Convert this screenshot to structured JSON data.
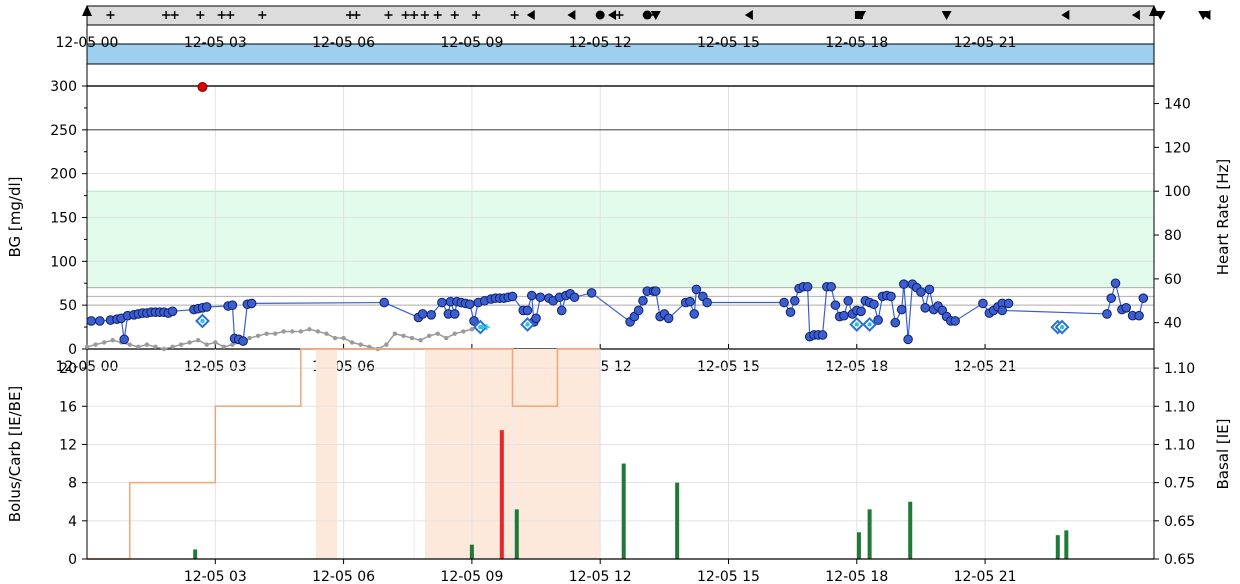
{
  "chart_data": [
    {
      "type": "scatter",
      "panel": "event-strip",
      "markers": [
        {
          "t": 0.55,
          "s": "plus"
        },
        {
          "t": 1.85,
          "s": "plus"
        },
        {
          "t": 2.05,
          "s": "plus"
        },
        {
          "t": 2.65,
          "s": "plus"
        },
        {
          "t": 3.15,
          "s": "plus"
        },
        {
          "t": 3.35,
          "s": "plus"
        },
        {
          "t": 4.1,
          "s": "plus"
        },
        {
          "t": 6.15,
          "s": "plus"
        },
        {
          "t": 6.3,
          "s": "plus"
        },
        {
          "t": 7.05,
          "s": "plus"
        },
        {
          "t": 7.45,
          "s": "plus"
        },
        {
          "t": 7.65,
          "s": "plus"
        },
        {
          "t": 7.9,
          "s": "plus"
        },
        {
          "t": 8.2,
          "s": "plus"
        },
        {
          "t": 8.6,
          "s": "plus"
        },
        {
          "t": 9.1,
          "s": "plus"
        },
        {
          "t": 10.0,
          "s": "plus"
        },
        {
          "t": 12.45,
          "s": "plus"
        },
        {
          "t": 13.15,
          "s": "plus"
        },
        {
          "t": 10.4,
          "s": "tri-left"
        },
        {
          "t": 11.35,
          "s": "tri-left"
        },
        {
          "t": 12.3,
          "s": "tri-left"
        },
        {
          "t": 15.5,
          "s": "tri-left"
        },
        {
          "t": 22.9,
          "s": "tri-left"
        },
        {
          "t": 24.55,
          "s": "tri-left"
        },
        {
          "t": 26.2,
          "s": "tri-left"
        },
        {
          "t": 27.2,
          "s": "tri-left"
        },
        {
          "t": 12.0,
          "s": "dot"
        },
        {
          "t": 13.1,
          "s": "dot"
        },
        {
          "t": 13.3,
          "s": "tri-down"
        },
        {
          "t": 18.1,
          "s": "tri-down"
        },
        {
          "t": 20.1,
          "s": "tri-down"
        },
        {
          "t": 25.1,
          "s": "tri-down"
        },
        {
          "t": 26.1,
          "s": "tri-down"
        },
        {
          "t": 29.05,
          "s": "tri-down"
        },
        {
          "t": 29.15,
          "s": "tri-down"
        },
        {
          "t": 29.3,
          "s": "tri-down"
        },
        {
          "t": 29.55,
          "s": "tri-down"
        },
        {
          "t": 18.05,
          "s": "square"
        },
        {
          "t": 29.0,
          "s": "square"
        }
      ]
    },
    {
      "type": "area",
      "panel": "bg-heart-rate",
      "xlabel": "",
      "ylabel": "BG [mg/dl]",
      "ylabel_right": "Heart Rate [Hz]",
      "xlim": [
        0,
        24.95
      ],
      "ylim": [
        0,
        300
      ],
      "ylim_right": [
        28,
        148
      ],
      "xticks": [
        0,
        3,
        6,
        9,
        12,
        15,
        18,
        21
      ],
      "xtick_labels": [
        "12-05 00",
        "12-05 03",
        "12-05 06",
        "12-05 09",
        "12-05 12",
        "12-05 15",
        "12-05 18",
        "12-05 21"
      ],
      "yticks": [
        0,
        50,
        100,
        150,
        200,
        250,
        300
      ],
      "yticks_right": [
        40,
        60,
        80,
        100,
        120,
        140
      ],
      "target_band": [
        70,
        180
      ],
      "reference_lines": [
        50,
        60,
        70,
        250,
        300
      ],
      "bg_low": [
        [
          0.1,
          32
        ],
        [
          0.3,
          32
        ],
        [
          0.55,
          33
        ],
        [
          0.7,
          34
        ],
        [
          0.8,
          35
        ],
        [
          0.87,
          11
        ],
        [
          0.95,
          38
        ],
        [
          1.1,
          39
        ],
        [
          1.2,
          40
        ],
        [
          1.3,
          41
        ],
        [
          1.4,
          41
        ],
        [
          1.5,
          42
        ],
        [
          1.6,
          42
        ],
        [
          1.7,
          42
        ],
        [
          1.8,
          42
        ],
        [
          1.9,
          41
        ],
        [
          2.0,
          43
        ],
        [
          2.5,
          45
        ],
        [
          2.6,
          46
        ],
        [
          2.7,
          47
        ],
        [
          2.8,
          48
        ],
        [
          3.3,
          49
        ],
        [
          3.4,
          50
        ],
        [
          3.45,
          12
        ],
        [
          3.55,
          11
        ],
        [
          3.65,
          9
        ],
        [
          3.75,
          51
        ],
        [
          3.85,
          52
        ],
        [
          6.95,
          53
        ],
        [
          7.75,
          36
        ],
        [
          7.85,
          40
        ],
        [
          8.05,
          39
        ],
        [
          8.3,
          53
        ],
        [
          8.45,
          40
        ],
        [
          8.5,
          54
        ],
        [
          8.6,
          40
        ],
        [
          8.65,
          54
        ],
        [
          8.75,
          53
        ],
        [
          8.85,
          52
        ],
        [
          8.95,
          51
        ],
        [
          9.05,
          32
        ],
        [
          9.15,
          53
        ],
        [
          9.3,
          55
        ],
        [
          9.45,
          57
        ],
        [
          9.55,
          58
        ],
        [
          9.65,
          58
        ],
        [
          9.75,
          58
        ],
        [
          9.85,
          59
        ],
        [
          9.95,
          60
        ],
        [
          10.2,
          44
        ],
        [
          10.3,
          44
        ],
        [
          10.4,
          61
        ],
        [
          10.45,
          31
        ],
        [
          10.5,
          35
        ],
        [
          10.6,
          59
        ],
        [
          10.8,
          58
        ],
        [
          10.9,
          55
        ],
        [
          11.05,
          59
        ],
        [
          11.1,
          44
        ],
        [
          11.2,
          61
        ],
        [
          11.3,
          63
        ],
        [
          11.4,
          59
        ],
        [
          11.8,
          64
        ],
        [
          12.7,
          31
        ],
        [
          12.8,
          37
        ],
        [
          12.9,
          44
        ],
        [
          13.0,
          55
        ],
        [
          13.1,
          66
        ],
        [
          13.25,
          66
        ],
        [
          13.3,
          66
        ],
        [
          13.4,
          37
        ],
        [
          13.5,
          40
        ],
        [
          13.6,
          35
        ],
        [
          14.0,
          53
        ],
        [
          14.1,
          54
        ],
        [
          14.2,
          40
        ],
        [
          14.25,
          68
        ],
        [
          14.4,
          60
        ],
        [
          14.5,
          53
        ],
        [
          16.3,
          53
        ],
        [
          16.45,
          42
        ],
        [
          16.55,
          55
        ],
        [
          16.65,
          69
        ],
        [
          16.75,
          71
        ],
        [
          16.85,
          71
        ],
        [
          16.9,
          14
        ],
        [
          17.0,
          16
        ],
        [
          17.1,
          16
        ],
        [
          17.2,
          16
        ],
        [
          17.3,
          71
        ],
        [
          17.4,
          71
        ],
        [
          17.5,
          50
        ],
        [
          17.6,
          37
        ],
        [
          17.7,
          38
        ],
        [
          17.8,
          55
        ],
        [
          17.9,
          40
        ],
        [
          18.0,
          44
        ],
        [
          18.1,
          43
        ],
        [
          18.2,
          55
        ],
        [
          18.3,
          53
        ],
        [
          18.4,
          51
        ],
        [
          18.5,
          33
        ],
        [
          18.6,
          60
        ],
        [
          18.7,
          61
        ],
        [
          18.8,
          60
        ],
        [
          18.9,
          30
        ],
        [
          19.05,
          45
        ],
        [
          19.1,
          74
        ],
        [
          19.2,
          11
        ],
        [
          19.3,
          74
        ],
        [
          19.4,
          70
        ],
        [
          19.5,
          65
        ],
        [
          19.6,
          47
        ],
        [
          19.7,
          68
        ],
        [
          19.8,
          45
        ],
        [
          19.9,
          49
        ],
        [
          20.0,
          44
        ],
        [
          20.1,
          37
        ],
        [
          20.2,
          32
        ],
        [
          20.3,
          32
        ],
        [
          20.95,
          52
        ],
        [
          21.1,
          41
        ],
        [
          21.2,
          44
        ],
        [
          21.3,
          48
        ],
        [
          21.4,
          52
        ],
        [
          21.55,
          52
        ],
        [
          21.4,
          44
        ],
        [
          23.85,
          40
        ],
        [
          23.95,
          58
        ],
        [
          24.05,
          75
        ],
        [
          24.2,
          45
        ],
        [
          24.3,
          47
        ],
        [
          24.45,
          38
        ],
        [
          24.6,
          38
        ],
        [
          24.7,
          58
        ]
      ],
      "bg_calibration": [
        [
          2.7,
          32
        ],
        [
          9.2,
          25
        ],
        [
          10.3,
          28
        ],
        [
          18.0,
          28
        ],
        [
          18.3,
          28
        ],
        [
          22.7,
          25
        ],
        [
          22.8,
          25
        ]
      ],
      "bg_high": [
        [
          2.7,
          300
        ]
      ],
      "heart_rate": [
        [
          0,
          29
        ],
        [
          0.2,
          30
        ],
        [
          0.4,
          31
        ],
        [
          0.6,
          32
        ],
        [
          0.8,
          31
        ],
        [
          1.0,
          30
        ],
        [
          1.2,
          29
        ],
        [
          1.4,
          30
        ],
        [
          1.6,
          29
        ],
        [
          1.8,
          28
        ],
        [
          2.0,
          29
        ],
        [
          2.2,
          30
        ],
        [
          2.4,
          31
        ],
        [
          2.6,
          32
        ],
        [
          2.8,
          30
        ],
        [
          3.0,
          31
        ],
        [
          3.2,
          29
        ],
        [
          3.4,
          30
        ],
        [
          3.6,
          31
        ],
        [
          3.8,
          33
        ],
        [
          4.0,
          34
        ],
        [
          4.2,
          35
        ],
        [
          4.4,
          35
        ],
        [
          4.6,
          36
        ],
        [
          4.8,
          36
        ],
        [
          5.0,
          36
        ],
        [
          5.2,
          37
        ],
        [
          5.4,
          36
        ],
        [
          5.6,
          35
        ],
        [
          5.8,
          33
        ],
        [
          6.0,
          33
        ],
        [
          6.2,
          31
        ],
        [
          6.4,
          30
        ],
        [
          6.6,
          29
        ],
        [
          6.8,
          28
        ],
        [
          7.0,
          30
        ],
        [
          7.2,
          35
        ],
        [
          7.4,
          34
        ],
        [
          7.6,
          33
        ],
        [
          7.8,
          32
        ],
        [
          8.0,
          34
        ],
        [
          8.2,
          35
        ],
        [
          8.4,
          33
        ],
        [
          8.6,
          35
        ],
        [
          8.8,
          36
        ],
        [
          9.0,
          37
        ],
        [
          9.2,
          38
        ]
      ],
      "hr_cursor": [
        [
          9.25,
          38
        ],
        [
          9.35,
          38
        ]
      ]
    },
    {
      "type": "bar",
      "panel": "bolus-carb-basal",
      "xlabel": "",
      "ylabel": "Bolus/Carb [IE/BE]",
      "ylabel_right": "Basal [IE]",
      "xlim": [
        0,
        24.95
      ],
      "ylim": [
        0,
        22
      ],
      "yticks": [
        0,
        4,
        8,
        12,
        16,
        20
      ],
      "xticks": [
        3,
        6,
        9,
        12,
        15,
        18,
        21
      ],
      "xtick_labels": [
        "12-05 03",
        "12-05 06",
        "12-05 09",
        "12-05 12",
        "12-05 15",
        "12-05 18",
        "12-05 21"
      ],
      "right_tick_labels": [
        "0.65",
        "0.65",
        "0.75",
        "1.10",
        "1.10",
        "1.10"
      ],
      "bolus": [
        [
          9.7,
          13.5
        ]
      ],
      "carbs": [
        [
          2.53,
          1
        ],
        [
          9.0,
          1.5
        ],
        [
          10.05,
          5.2
        ],
        [
          12.55,
          10
        ],
        [
          13.8,
          8
        ],
        [
          18.05,
          2.8
        ],
        [
          18.3,
          5.2
        ],
        [
          19.25,
          6
        ],
        [
          22.7,
          2.5
        ],
        [
          22.9,
          3
        ]
      ],
      "basal_steps": [
        [
          0,
          0
        ],
        [
          1.0,
          0
        ],
        [
          1.0,
          8
        ],
        [
          3.0,
          8
        ],
        [
          3.0,
          16
        ],
        [
          5.0,
          16
        ],
        [
          5.0,
          22
        ],
        [
          9.95,
          22
        ],
        [
          9.95,
          16
        ],
        [
          11.0,
          16
        ],
        [
          11.0,
          22
        ],
        [
          12.0,
          22
        ]
      ],
      "temp_basal_bands": [
        [
          5.35,
          5.85
        ],
        [
          7.9,
          12.0
        ]
      ],
      "marker_lines": [
        7.65,
        9.95
      ]
    }
  ],
  "colors": {
    "target_band": "#e3fbea",
    "target_band_edge": "#b7e6c2",
    "event_strip": "#dcdcdc",
    "blue_band": "#9dd0f0",
    "bg_series": "#3b5fcf",
    "bg_edge": "#0f1f6e",
    "heart_rate": "#9a9a9a",
    "bolus": "#e8262a",
    "carbs": "#1f7a36",
    "basal": "#f2a47a",
    "temp_basal": "#fde8dc",
    "high_point": "#e00000",
    "calibration": "#2a6fd6",
    "cursor": "#22c4ee"
  }
}
